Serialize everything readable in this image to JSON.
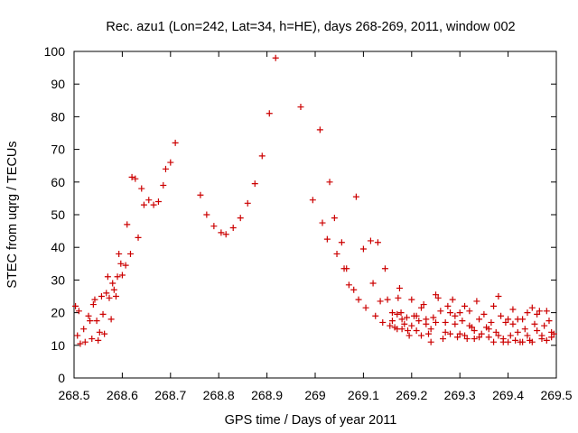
{
  "chart_data": {
    "type": "scatter",
    "title": "Rec. azu1 (Lon=242, Lat=34, h=HE), days 268-269, 2011, window 002",
    "xlabel": "GPS time / Days of year 2011",
    "ylabel": "STEC from uqrg / TECUs",
    "xlim": [
      268.5,
      269.5
    ],
    "ylim": [
      0,
      100
    ],
    "grid": false,
    "marker": "plus",
    "color": "#cc0000",
    "xticks": [
      "268.5",
      "268.6",
      "268.7",
      "268.8",
      "268.9",
      "269",
      "269.1",
      "269.2",
      "269.3",
      "269.4",
      "269.5"
    ],
    "yticks": [
      "0",
      "10",
      "20",
      "30",
      "40",
      "50",
      "60",
      "70",
      "80",
      "90",
      "100"
    ],
    "points": [
      [
        268.503,
        22.0
      ],
      [
        268.507,
        13.0
      ],
      [
        268.51,
        20.5
      ],
      [
        268.513,
        10.5
      ],
      [
        268.52,
        15.0
      ],
      [
        268.523,
        11.0
      ],
      [
        268.53,
        19.0
      ],
      [
        268.533,
        17.5
      ],
      [
        268.537,
        12.0
      ],
      [
        268.54,
        22.5
      ],
      [
        268.543,
        24.0
      ],
      [
        268.547,
        17.5
      ],
      [
        268.55,
        11.5
      ],
      [
        268.553,
        14.0
      ],
      [
        268.557,
        25.0
      ],
      [
        268.56,
        19.5
      ],
      [
        268.563,
        13.5
      ],
      [
        268.567,
        26.0
      ],
      [
        268.57,
        31.0
      ],
      [
        268.573,
        24.5
      ],
      [
        268.577,
        18.0
      ],
      [
        268.58,
        29.0
      ],
      [
        268.583,
        27.0
      ],
      [
        268.587,
        25.0
      ],
      [
        268.59,
        31.0
      ],
      [
        268.593,
        38.0
      ],
      [
        268.597,
        35.0
      ],
      [
        268.6,
        31.5
      ],
      [
        268.607,
        34.5
      ],
      [
        268.61,
        47.0
      ],
      [
        268.617,
        38.0
      ],
      [
        268.62,
        61.5
      ],
      [
        268.627,
        61.0
      ],
      [
        268.633,
        43.0
      ],
      [
        268.64,
        58.0
      ],
      [
        268.645,
        53.0
      ],
      [
        268.655,
        54.5
      ],
      [
        268.665,
        53.0
      ],
      [
        268.675,
        54.0
      ],
      [
        268.685,
        59.0
      ],
      [
        268.69,
        64.0
      ],
      [
        268.7,
        66.0
      ],
      [
        268.71,
        72.0
      ],
      [
        268.762,
        56.0
      ],
      [
        268.775,
        50.0
      ],
      [
        268.79,
        46.5
      ],
      [
        268.805,
        44.5
      ],
      [
        268.815,
        44.0
      ],
      [
        268.83,
        46.0
      ],
      [
        268.845,
        49.0
      ],
      [
        268.86,
        53.5
      ],
      [
        268.875,
        59.5
      ],
      [
        268.89,
        68.0
      ],
      [
        268.905,
        81.0
      ],
      [
        268.918,
        98.0
      ],
      [
        268.97,
        83.0
      ],
      [
        268.995,
        54.5
      ],
      [
        269.01,
        76.0
      ],
      [
        269.015,
        47.5
      ],
      [
        269.025,
        42.5
      ],
      [
        269.03,
        60.0
      ],
      [
        269.04,
        49.0
      ],
      [
        269.045,
        38.0
      ],
      [
        269.055,
        41.5
      ],
      [
        269.06,
        33.5
      ],
      [
        269.065,
        33.5
      ],
      [
        269.07,
        28.5
      ],
      [
        269.08,
        27.0
      ],
      [
        269.085,
        55.5
      ],
      [
        269.09,
        24.0
      ],
      [
        269.1,
        39.5
      ],
      [
        269.105,
        21.5
      ],
      [
        269.115,
        42.0
      ],
      [
        269.12,
        29.0
      ],
      [
        269.125,
        19.0
      ],
      [
        269.13,
        41.5
      ],
      [
        269.135,
        23.5
      ],
      [
        269.14,
        17.0
      ],
      [
        269.145,
        33.5
      ],
      [
        269.15,
        24.0
      ],
      [
        269.155,
        16.0
      ],
      [
        269.16,
        20.0
      ],
      [
        269.165,
        15.5
      ],
      [
        269.17,
        19.5
      ],
      [
        269.172,
        24.5
      ],
      [
        269.175,
        27.5
      ],
      [
        269.178,
        20.0
      ],
      [
        269.18,
        15.0
      ],
      [
        269.185,
        16.5
      ],
      [
        269.19,
        18.5
      ],
      [
        269.192,
        14.5
      ],
      [
        269.195,
        13.0
      ],
      [
        269.2,
        24.0
      ],
      [
        269.205,
        19.0
      ],
      [
        269.21,
        14.5
      ],
      [
        269.215,
        17.5
      ],
      [
        269.22,
        21.5
      ],
      [
        269.225,
        22.5
      ],
      [
        269.23,
        16.5
      ],
      [
        269.235,
        13.5
      ],
      [
        269.24,
        11.0
      ],
      [
        269.245,
        18.5
      ],
      [
        269.25,
        25.5
      ],
      [
        269.255,
        24.5
      ],
      [
        269.26,
        20.5
      ],
      [
        269.265,
        12.0
      ],
      [
        269.27,
        17.0
      ],
      [
        269.275,
        22.0
      ],
      [
        269.28,
        13.5
      ],
      [
        269.285,
        24.0
      ],
      [
        269.29,
        19.0
      ],
      [
        269.295,
        12.5
      ],
      [
        269.3,
        13.5
      ],
      [
        269.305,
        17.5
      ],
      [
        269.31,
        22.0
      ],
      [
        269.315,
        12.0
      ],
      [
        269.32,
        20.5
      ],
      [
        269.325,
        15.5
      ],
      [
        269.33,
        14.5
      ],
      [
        269.335,
        23.5
      ],
      [
        269.34,
        12.5
      ],
      [
        269.345,
        13.5
      ],
      [
        269.35,
        19.5
      ],
      [
        269.355,
        15.5
      ],
      [
        269.36,
        12.5
      ],
      [
        269.365,
        17.0
      ],
      [
        269.37,
        22.0
      ],
      [
        269.375,
        14.0
      ],
      [
        269.38,
        25.0
      ],
      [
        269.385,
        19.0
      ],
      [
        269.39,
        11.0
      ],
      [
        269.395,
        17.0
      ],
      [
        269.4,
        18.0
      ],
      [
        269.405,
        13.0
      ],
      [
        269.41,
        16.5
      ],
      [
        269.415,
        11.5
      ],
      [
        269.42,
        18.0
      ],
      [
        269.425,
        11.0
      ],
      [
        269.43,
        11.0
      ],
      [
        269.435,
        15.0
      ],
      [
        269.44,
        20.0
      ],
      [
        269.445,
        11.5
      ],
      [
        269.45,
        21.5
      ],
      [
        269.455,
        16.5
      ],
      [
        269.46,
        19.5
      ],
      [
        269.465,
        20.5
      ],
      [
        269.47,
        13.0
      ],
      [
        269.475,
        16.0
      ],
      [
        269.48,
        20.5
      ],
      [
        269.485,
        17.5
      ],
      [
        269.49,
        14.0
      ],
      [
        269.495,
        13.5
      ],
      [
        269.16,
        17.5
      ],
      [
        269.17,
        15.0
      ],
      [
        269.18,
        18.0
      ],
      [
        269.2,
        16.0
      ],
      [
        269.21,
        19.0
      ],
      [
        269.22,
        13.0
      ],
      [
        269.23,
        18.0
      ],
      [
        269.24,
        15.0
      ],
      [
        269.25,
        17.0
      ],
      [
        269.27,
        14.0
      ],
      [
        269.28,
        20.0
      ],
      [
        269.29,
        16.5
      ],
      [
        269.3,
        20.0
      ],
      [
        269.31,
        13.0
      ],
      [
        269.32,
        16.0
      ],
      [
        269.33,
        12.0
      ],
      [
        269.34,
        18.0
      ],
      [
        269.36,
        15.0
      ],
      [
        269.37,
        11.0
      ],
      [
        269.38,
        13.0
      ],
      [
        269.39,
        12.0
      ],
      [
        269.4,
        11.0
      ],
      [
        269.41,
        21.0
      ],
      [
        269.42,
        14.0
      ],
      [
        269.43,
        18.0
      ],
      [
        269.44,
        13.0
      ],
      [
        269.45,
        11.0
      ],
      [
        269.46,
        14.5
      ],
      [
        269.47,
        12.0
      ],
      [
        269.48,
        11.5
      ],
      [
        269.49,
        12.5
      ]
    ]
  }
}
